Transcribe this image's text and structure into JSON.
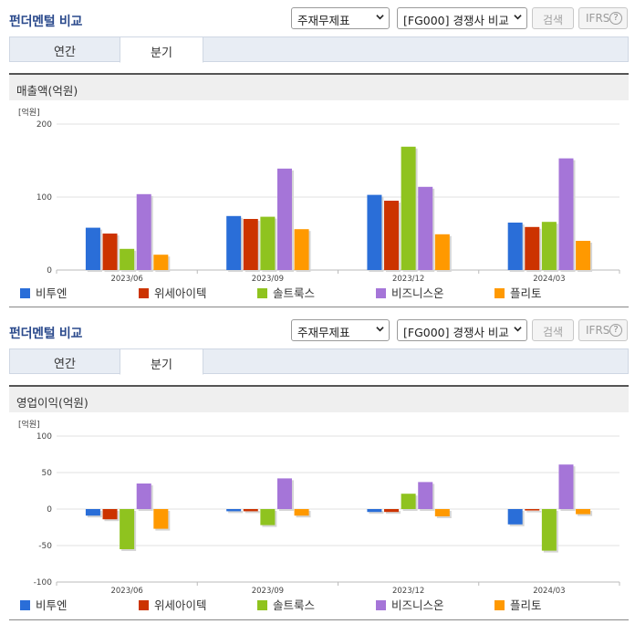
{
  "colors": {
    "title": "#2b4a8c",
    "tab_bg": "#e8edf4"
  },
  "sections": [
    {
      "title": "펀더멘털 비교",
      "select_statement": "주재무제표",
      "select_compare": "[FG000] 경쟁사 비교",
      "search_label": "검색",
      "ifrs_label": "IFRS",
      "help_label": "?",
      "tabs": [
        "연간",
        "분기"
      ],
      "active_tab": "분기",
      "metric_title": "매출액(억원)"
    },
    {
      "title": "펀더멘털 비교",
      "select_statement": "주재무제표",
      "select_compare": "[FG000] 경쟁사 비교",
      "search_label": "검색",
      "ifrs_label": "IFRS",
      "help_label": "?",
      "tabs": [
        "연간",
        "분기"
      ],
      "active_tab": "분기",
      "metric_title": "영업이익(억원)"
    }
  ],
  "chart_data": [
    {
      "type": "bar",
      "unit_label": "[억원]",
      "categories": [
        "2023/06",
        "2023/09",
        "2023/12",
        "2024/03"
      ],
      "ylim": [
        0,
        200
      ],
      "yticks": [
        0,
        100,
        200
      ],
      "grid": true,
      "legend_position": "bottom",
      "series": [
        {
          "name": "비투엔",
          "color": "#2a6ed8",
          "values": [
            58,
            74,
            103,
            65
          ]
        },
        {
          "name": "위세아이텍",
          "color": "#cc3300",
          "values": [
            50,
            70,
            95,
            59
          ]
        },
        {
          "name": "솔트룩스",
          "color": "#8fc31f",
          "values": [
            29,
            73,
            169,
            66
          ]
        },
        {
          "name": "비즈니스온",
          "color": "#a575d8",
          "values": [
            104,
            139,
            114,
            153
          ]
        },
        {
          "name": "플리토",
          "color": "#ff9900",
          "values": [
            21,
            56,
            49,
            40
          ]
        }
      ]
    },
    {
      "type": "bar",
      "unit_label": "[억원]",
      "categories": [
        "2023/06",
        "2023/09",
        "2023/12",
        "2024/03"
      ],
      "ylim": [
        -100,
        100
      ],
      "yticks": [
        -100,
        -50,
        0,
        50,
        100
      ],
      "grid": true,
      "legend_position": "bottom",
      "series": [
        {
          "name": "비투엔",
          "color": "#2a6ed8",
          "values": [
            -9,
            -3,
            -4,
            -21
          ]
        },
        {
          "name": "위세아이텍",
          "color": "#cc3300",
          "values": [
            -14,
            -3,
            -4,
            -2
          ]
        },
        {
          "name": "솔트룩스",
          "color": "#8fc31f",
          "values": [
            -55,
            -22,
            21,
            -57
          ]
        },
        {
          "name": "비즈니스온",
          "color": "#a575d8",
          "values": [
            35,
            42,
            37,
            61
          ]
        },
        {
          "name": "플리토",
          "color": "#ff9900",
          "values": [
            -27,
            -9,
            -10,
            -7
          ]
        }
      ]
    }
  ]
}
